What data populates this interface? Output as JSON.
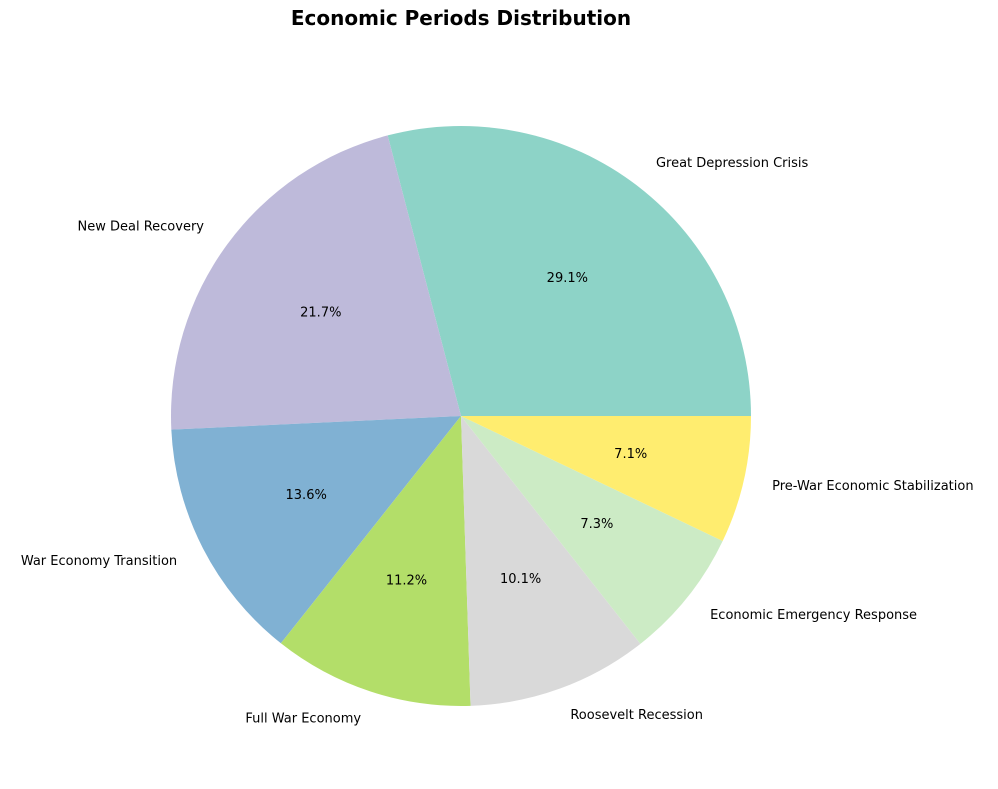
{
  "chart_data": {
    "type": "pie",
    "title": "Economic Periods Distribution",
    "categories": [
      "Great Depression Crisis",
      "New Deal Recovery",
      "War Economy Transition",
      "Full War Economy",
      "Roosevelt Recession",
      "Economic Emergency Response",
      "Pre-War Economic Stabilization"
    ],
    "values": [
      29.1,
      21.7,
      13.6,
      11.2,
      10.1,
      7.3,
      7.1
    ],
    "value_labels": [
      "29.1%",
      "21.7%",
      "13.6%",
      "11.2%",
      "10.1%",
      "7.3%",
      "7.1%"
    ],
    "colors": [
      "#8dd3c7",
      "#bebada",
      "#80b1d3",
      "#b3de69",
      "#d9d9d9",
      "#ccebc5",
      "#ffed6f"
    ],
    "start_angle": 0,
    "direction": "counterclockwise",
    "legend": "none"
  }
}
